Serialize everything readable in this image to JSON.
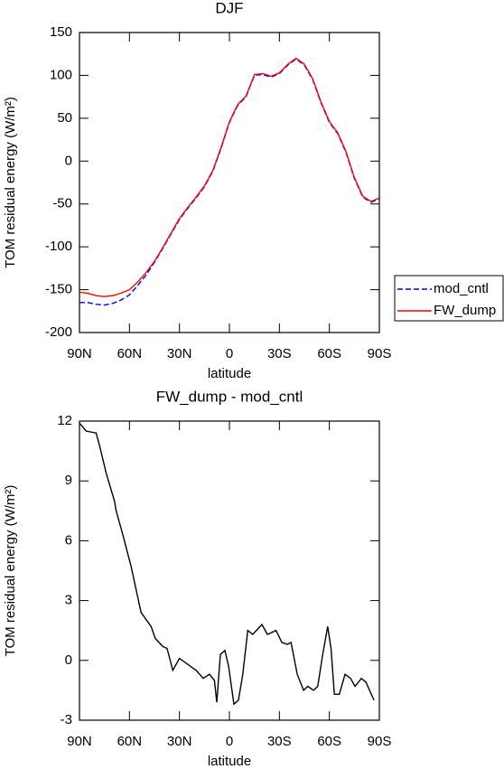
{
  "chart_data": [
    {
      "type": "line",
      "title": "DJF",
      "xlabel": "latitude",
      "ylabel": "TOM residual energy (W/m²)",
      "x": [
        90,
        85,
        80,
        75,
        70,
        65,
        60,
        55,
        50,
        45,
        40,
        35,
        30,
        25,
        20,
        15,
        10,
        5,
        0,
        -5,
        -10,
        -15,
        -20,
        -25,
        -30,
        -35,
        -40,
        -45,
        -50,
        -55,
        -60,
        -65,
        -70,
        -75,
        -80,
        -85,
        -90
      ],
      "series": [
        {
          "name": "mod_cntl",
          "color": "#0000ff",
          "dash": true,
          "values": [
            -165,
            -165,
            -167,
            -168,
            -166,
            -162,
            -156,
            -145,
            -133,
            -118,
            -102,
            -85,
            -68,
            -55,
            -43,
            -30,
            -12,
            15,
            45,
            65,
            75,
            100,
            101,
            98,
            102,
            112,
            119,
            112,
            95,
            68,
            45,
            32,
            10,
            -20,
            -42,
            -48,
            -44
          ]
        },
        {
          "name": "FW_dump",
          "color": "#ff0000",
          "dash": false,
          "values": [
            -153,
            -154,
            -157,
            -158,
            -157,
            -154,
            -150,
            -141,
            -130,
            -117,
            -101,
            -84,
            -67,
            -54,
            -42,
            -29,
            -11,
            16,
            46,
            66,
            76,
            101,
            102,
            99,
            103,
            113,
            120,
            113,
            96,
            69,
            46,
            33,
            11,
            -19,
            -41,
            -47,
            -43
          ]
        }
      ],
      "xlim": [
        90,
        -90
      ],
      "xticks": [
        {
          "value": 90,
          "label": "90N"
        },
        {
          "value": 60,
          "label": "60N"
        },
        {
          "value": 30,
          "label": "30N"
        },
        0,
        {
          "value": -30,
          "label": "30S"
        },
        {
          "value": -60,
          "label": "60S"
        },
        {
          "value": -90,
          "label": "90S"
        }
      ],
      "ylim": [
        -200,
        150
      ],
      "yticks": [
        150,
        100,
        50,
        0,
        -50,
        -100,
        -150,
        -200
      ],
      "legend": "right"
    },
    {
      "type": "line",
      "title": "FW_dump - mod_cntl",
      "xlabel": "latitude",
      "ylabel": "TOM residual energy (W/m²)",
      "x": [
        90,
        86,
        80,
        78,
        74,
        69,
        68,
        64,
        59,
        53,
        47,
        44.5,
        40,
        37.4,
        34,
        30,
        20,
        15.7,
        12,
        9,
        7.6,
        5.4,
        2.7,
        0.5,
        -2.7,
        -5.4,
        -8,
        -11,
        -14,
        -19.5,
        -22.8,
        -28,
        -31.5,
        -34.7,
        -37,
        -40.7,
        -44.5,
        -47,
        -50.5,
        -53,
        -56,
        -59,
        -61,
        -63,
        -66,
        -69.4,
        -72.7,
        -75.4,
        -79.2,
        -82,
        -86.8
      ],
      "values": [
        11.9,
        11.5,
        11.4,
        10.8,
        9.4,
        8.0,
        7.5,
        6.3,
        4.7,
        2.4,
        1.7,
        1.1,
        0.7,
        0.6,
        -0.5,
        0.1,
        -0.5,
        -0.9,
        -0.7,
        -1.0,
        -2.1,
        0.3,
        0.5,
        -0.3,
        -2.2,
        -2.0,
        -0.7,
        1.5,
        1.3,
        1.8,
        1.3,
        1.5,
        0.9,
        0.8,
        0.9,
        -0.7,
        -1.5,
        -1.3,
        -1.5,
        -1.3,
        0.3,
        1.7,
        0.6,
        -1.7,
        -1.7,
        -0.7,
        -0.9,
        -1.3,
        -0.9,
        -1.1,
        -2.0
      ],
      "color": "#000000",
      "xlim": [
        90,
        -90
      ],
      "xticks": [
        {
          "value": 90,
          "label": "90N"
        },
        {
          "value": 60,
          "label": "60N"
        },
        {
          "value": 30,
          "label": "30N"
        },
        0,
        {
          "value": -30,
          "label": "30S"
        },
        {
          "value": -60,
          "label": "60S"
        },
        {
          "value": -90,
          "label": "90S"
        }
      ],
      "ylim": [
        -3,
        12
      ],
      "yticks": [
        12,
        9,
        6,
        3,
        0,
        -3
      ]
    }
  ]
}
